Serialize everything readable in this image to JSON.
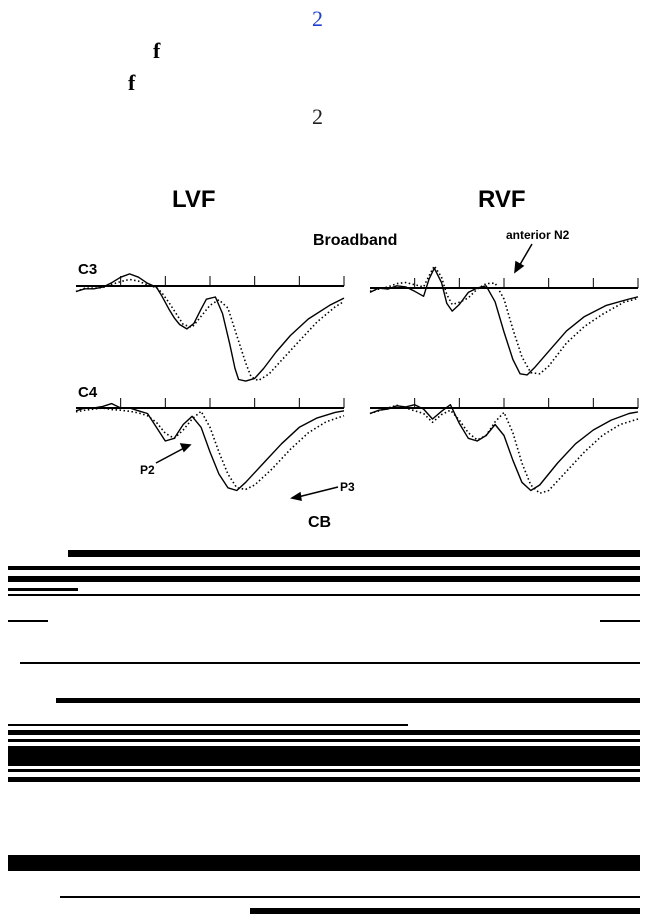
{
  "top_fragments": {
    "number_blue": "2",
    "glyph_f_1": "f",
    "glyph_f_2": "f",
    "number_black": "2"
  },
  "colors": {
    "blue_number": "#1f3fd6",
    "ink": "#000000"
  },
  "chart_data": {
    "type": "line",
    "column_titles": [
      "LVF",
      "RVF"
    ],
    "conditions": [
      "Broadband",
      "CB"
    ],
    "channels": [
      "C3",
      "C4"
    ],
    "annotations": {
      "anterior_n2": "anterior N2",
      "p2": "P2",
      "p3": "P3"
    },
    "y_inverted": true,
    "line_styles": {
      "solid": "solid",
      "dotted": "dotted"
    },
    "x_ticks": 6,
    "panels": [
      {
        "condition": "Broadband",
        "channel": "C3",
        "field": "LVF",
        "solid": [
          [
            0,
            1
          ],
          [
            0.05,
            0.5
          ],
          [
            0.1,
            0.5
          ],
          [
            0.15,
            0.2
          ],
          [
            0.2,
            -0.6
          ],
          [
            0.25,
            -1.6
          ],
          [
            0.3,
            -2.2
          ],
          [
            0.35,
            -1.6
          ],
          [
            0.4,
            -0.5
          ],
          [
            0.45,
            0.2
          ],
          [
            0.48,
            1.8
          ],
          [
            0.52,
            4.2
          ],
          [
            0.55,
            5.8
          ],
          [
            0.58,
            7.0
          ],
          [
            0.62,
            7.8
          ],
          [
            0.66,
            6.8
          ],
          [
            0.7,
            4.2
          ],
          [
            0.73,
            2.4
          ],
          [
            0.78,
            2.0
          ],
          [
            0.82,
            5.0
          ],
          [
            0.86,
            10.5
          ],
          [
            0.89,
            15.0
          ],
          [
            0.91,
            17.0
          ],
          [
            0.95,
            17.3
          ],
          [
            1.0,
            16.8
          ],
          [
            1.05,
            15.0
          ],
          [
            1.12,
            12.0
          ],
          [
            1.2,
            9.0
          ],
          [
            1.3,
            6.0
          ],
          [
            1.42,
            3.5
          ],
          [
            1.5,
            2.2
          ]
        ],
        "dotted": [
          [
            0,
            1
          ],
          [
            0.05,
            0.4
          ],
          [
            0.1,
            0.4
          ],
          [
            0.15,
            0.3
          ],
          [
            0.2,
            -0.3
          ],
          [
            0.25,
            -0.8
          ],
          [
            0.3,
            -1.2
          ],
          [
            0.35,
            -0.9
          ],
          [
            0.4,
            -0.2
          ],
          [
            0.45,
            0.3
          ],
          [
            0.48,
            1.2
          ],
          [
            0.52,
            3.0
          ],
          [
            0.56,
            5.0
          ],
          [
            0.6,
            7.0
          ],
          [
            0.65,
            7.5
          ],
          [
            0.7,
            5.5
          ],
          [
            0.75,
            3.5
          ],
          [
            0.8,
            2.5
          ],
          [
            0.85,
            4.0
          ],
          [
            0.9,
            9.0
          ],
          [
            0.95,
            14.0
          ],
          [
            0.98,
            16.5
          ],
          [
            1.02,
            17.2
          ],
          [
            1.08,
            16.0
          ],
          [
            1.15,
            13.5
          ],
          [
            1.25,
            10.0
          ],
          [
            1.35,
            6.5
          ],
          [
            1.45,
            3.8
          ],
          [
            1.5,
            2.8
          ]
        ]
      },
      {
        "condition": "Broadband",
        "channel": "C3",
        "field": "RVF",
        "solid": [
          [
            0,
            0.8
          ],
          [
            0.05,
            0
          ],
          [
            0.1,
            0.2
          ],
          [
            0.15,
            -0.4
          ],
          [
            0.2,
            -0.2
          ],
          [
            0.25,
            0.6
          ],
          [
            0.3,
            1.5
          ],
          [
            0.33,
            -1.6
          ],
          [
            0.36,
            -3.6
          ],
          [
            0.4,
            -1.0
          ],
          [
            0.43,
            2.8
          ],
          [
            0.46,
            4.2
          ],
          [
            0.5,
            3.0
          ],
          [
            0.55,
            0.8
          ],
          [
            0.6,
            0
          ],
          [
            0.65,
            -0.4
          ],
          [
            0.7,
            2.5
          ],
          [
            0.75,
            8.0
          ],
          [
            0.8,
            13.0
          ],
          [
            0.84,
            15.6
          ],
          [
            0.88,
            15.8
          ],
          [
            0.92,
            14.5
          ],
          [
            1.0,
            11.5
          ],
          [
            1.1,
            7.8
          ],
          [
            1.2,
            5.2
          ],
          [
            1.32,
            3.2
          ],
          [
            1.45,
            2.0
          ],
          [
            1.5,
            1.6
          ]
        ],
        "dotted": [
          [
            0,
            0.6
          ],
          [
            0.05,
            0.2
          ],
          [
            0.1,
            -0.2
          ],
          [
            0.15,
            -0.8
          ],
          [
            0.2,
            -1.0
          ],
          [
            0.25,
            -0.6
          ],
          [
            0.3,
            -0.2
          ],
          [
            0.33,
            -2.2
          ],
          [
            0.36,
            -4.0
          ],
          [
            0.4,
            -2.0
          ],
          [
            0.43,
            1.2
          ],
          [
            0.46,
            3.0
          ],
          [
            0.5,
            2.6
          ],
          [
            0.55,
            1.8
          ],
          [
            0.6,
            0.2
          ],
          [
            0.65,
            -0.8
          ],
          [
            0.7,
            -0.9
          ],
          [
            0.75,
            2.0
          ],
          [
            0.8,
            7.5
          ],
          [
            0.85,
            12.5
          ],
          [
            0.9,
            15.4
          ],
          [
            0.95,
            15.6
          ],
          [
            1.0,
            14.2
          ],
          [
            1.1,
            10.0
          ],
          [
            1.2,
            7.0
          ],
          [
            1.3,
            4.8
          ],
          [
            1.42,
            2.6
          ],
          [
            1.5,
            1.9
          ]
        ]
      },
      {
        "condition": "Broadband",
        "channel": "C4",
        "field": "LVF",
        "solid": [
          [
            0,
            0.5
          ],
          [
            0.05,
            0
          ],
          [
            0.1,
            0
          ],
          [
            0.15,
            -0.3
          ],
          [
            0.2,
            -0.8
          ],
          [
            0.25,
            0
          ],
          [
            0.3,
            0
          ],
          [
            0.35,
            0.5
          ],
          [
            0.4,
            1.0
          ],
          [
            0.45,
            3.5
          ],
          [
            0.5,
            6.0
          ],
          [
            0.55,
            5.5
          ],
          [
            0.6,
            3.0
          ],
          [
            0.65,
            1.5
          ],
          [
            0.7,
            3.5
          ],
          [
            0.75,
            8.0
          ],
          [
            0.8,
            12.0
          ],
          [
            0.85,
            14.5
          ],
          [
            0.9,
            15.0
          ],
          [
            0.95,
            13.5
          ],
          [
            1.05,
            10.0
          ],
          [
            1.15,
            6.5
          ],
          [
            1.25,
            3.5
          ],
          [
            1.35,
            1.8
          ],
          [
            1.45,
            0.8
          ],
          [
            1.5,
            0.5
          ]
        ],
        "dotted": [
          [
            0,
            0.7
          ],
          [
            0.05,
            0.4
          ],
          [
            0.1,
            0.2
          ],
          [
            0.15,
            0
          ],
          [
            0.2,
            0.3
          ],
          [
            0.25,
            0.4
          ],
          [
            0.3,
            0.6
          ],
          [
            0.35,
            0.9
          ],
          [
            0.4,
            1.4
          ],
          [
            0.45,
            2.6
          ],
          [
            0.5,
            4.6
          ],
          [
            0.55,
            5.5
          ],
          [
            0.6,
            4.0
          ],
          [
            0.65,
            2.0
          ],
          [
            0.7,
            0.6
          ],
          [
            0.75,
            3.5
          ],
          [
            0.8,
            8.0
          ],
          [
            0.85,
            12.0
          ],
          [
            0.9,
            14.5
          ],
          [
            0.95,
            14.8
          ],
          [
            1.0,
            14.0
          ],
          [
            1.1,
            11.0
          ],
          [
            1.2,
            7.5
          ],
          [
            1.3,
            4.5
          ],
          [
            1.4,
            2.5
          ],
          [
            1.5,
            1.4
          ]
        ]
      },
      {
        "condition": "Broadband",
        "channel": "C4",
        "field": "RVF",
        "solid": [
          [
            0,
            1.0
          ],
          [
            0.05,
            0.4
          ],
          [
            0.1,
            0.2
          ],
          [
            0.15,
            -0.4
          ],
          [
            0.2,
            -0.2
          ],
          [
            0.25,
            -0.6
          ],
          [
            0.3,
            0.2
          ],
          [
            0.35,
            2.0
          ],
          [
            0.4,
            0.6
          ],
          [
            0.45,
            -0.6
          ],
          [
            0.5,
            2.8
          ],
          [
            0.55,
            5.5
          ],
          [
            0.6,
            6.0
          ],
          [
            0.65,
            5.0
          ],
          [
            0.7,
            3.0
          ],
          [
            0.75,
            5.0
          ],
          [
            0.8,
            9.5
          ],
          [
            0.85,
            13.5
          ],
          [
            0.9,
            15.0
          ],
          [
            0.95,
            14.0
          ],
          [
            1.05,
            10.0
          ],
          [
            1.15,
            6.5
          ],
          [
            1.25,
            4.0
          ],
          [
            1.35,
            2.2
          ],
          [
            1.45,
            1.0
          ],
          [
            1.5,
            0.7
          ]
        ],
        "dotted": [
          [
            0,
            1.0
          ],
          [
            0.05,
            0.5
          ],
          [
            0.1,
            0
          ],
          [
            0.15,
            -0.5
          ],
          [
            0.2,
            0
          ],
          [
            0.25,
            0.5
          ],
          [
            0.3,
            1.0
          ],
          [
            0.35,
            2.6
          ],
          [
            0.4,
            1.2
          ],
          [
            0.45,
            0.4
          ],
          [
            0.5,
            2.2
          ],
          [
            0.55,
            4.5
          ],
          [
            0.6,
            5.8
          ],
          [
            0.65,
            5.0
          ],
          [
            0.7,
            2.5
          ],
          [
            0.75,
            0.8
          ],
          [
            0.8,
            4.5
          ],
          [
            0.85,
            10.0
          ],
          [
            0.9,
            14.0
          ],
          [
            0.95,
            15.5
          ],
          [
            1.0,
            15.0
          ],
          [
            1.1,
            11.5
          ],
          [
            1.2,
            8.0
          ],
          [
            1.3,
            5.0
          ],
          [
            1.4,
            3.0
          ],
          [
            1.5,
            2.0
          ]
        ]
      }
    ]
  }
}
